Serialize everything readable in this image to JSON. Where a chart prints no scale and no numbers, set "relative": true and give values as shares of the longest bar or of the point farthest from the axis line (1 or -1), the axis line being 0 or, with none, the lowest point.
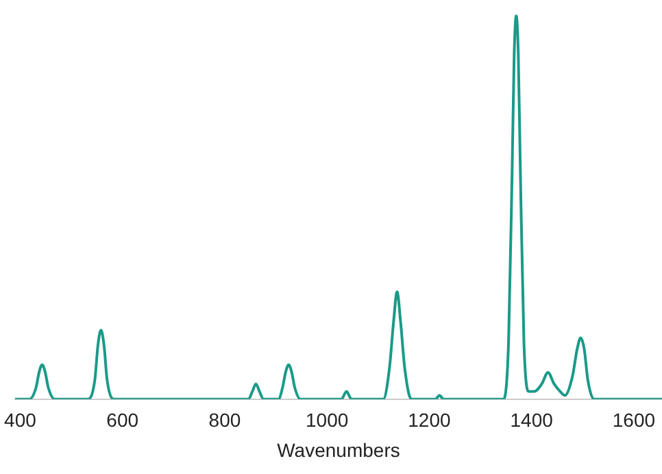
{
  "chart_data": {
    "type": "line",
    "relative": true,
    "xlabel": "Wavenumbers",
    "xlim": [
      390,
      1655
    ],
    "xticks": [
      400,
      600,
      800,
      1000,
      1200,
      1400,
      1600
    ],
    "grid": false,
    "marker": "none",
    "line_style": "solid",
    "x": [
      390,
      418,
      431,
      437,
      443,
      449,
      455,
      468,
      533,
      546,
      552,
      558,
      564,
      570,
      583,
      846,
      854,
      861,
      868,
      876,
      905,
      913,
      919,
      925,
      931,
      937,
      948,
      1028,
      1038,
      1048,
      1110,
      1122,
      1130,
      1137,
      1144,
      1152,
      1165,
      1212,
      1220,
      1228,
      1345,
      1355,
      1362,
      1366,
      1370,
      1374,
      1378,
      1385,
      1395,
      1405,
      1420,
      1432,
      1444,
      1456,
      1465,
      1480,
      1489,
      1496,
      1503,
      1510,
      1522,
      1655
    ],
    "series": [
      {
        "color": "#1a9a88",
        "values": [
          0,
          0,
          0.03,
          0.07,
          0.09,
          0.07,
          0.03,
          0,
          0,
          0.05,
          0.14,
          0.18,
          0.14,
          0.05,
          0,
          0,
          0.02,
          0.04,
          0.02,
          0,
          0,
          0.03,
          0.07,
          0.09,
          0.07,
          0.03,
          0,
          0,
          0.02,
          0,
          0,
          0.08,
          0.2,
          0.28,
          0.2,
          0.08,
          0,
          0,
          0.01,
          0,
          0,
          0.15,
          0.6,
          0.9,
          1,
          0.9,
          0.6,
          0.15,
          0.02,
          0.02,
          0.04,
          0.07,
          0.04,
          0.02,
          0.01,
          0.06,
          0.13,
          0.16,
          0.13,
          0.05,
          0,
          0
        ]
      }
    ]
  }
}
